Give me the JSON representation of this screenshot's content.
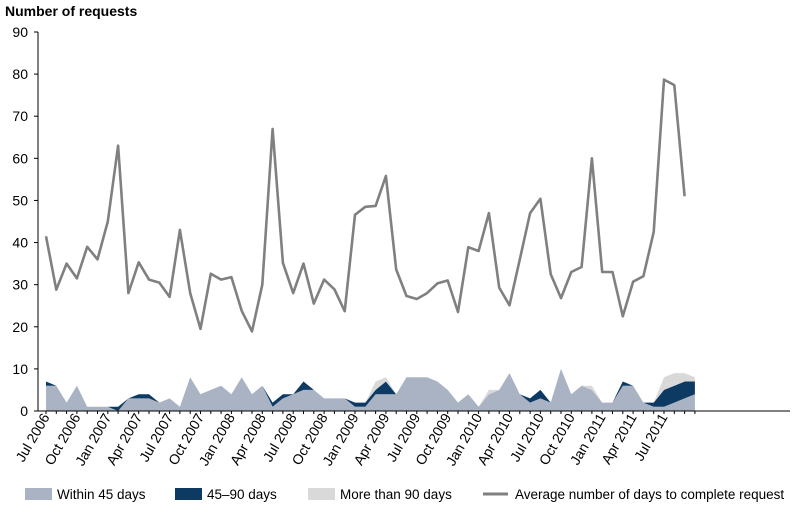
{
  "chart_data": {
    "type": "area",
    "title": "",
    "ylabel": "Number of requests",
    "xlabel": "",
    "ylim": [
      0,
      90
    ],
    "yticks": [
      0,
      10,
      20,
      30,
      40,
      50,
      60,
      70,
      80,
      90
    ],
    "grid": false,
    "legend_position": "bottom",
    "x_tick_labels": [
      "Jul 2006",
      "Oct 2006",
      "Jan 2007",
      "Apr 2007",
      "Jul 2007",
      "Oct 2007",
      "Jan 2008",
      "Apr 2008",
      "Jul 2008",
      "Oct 2008",
      "Jan 2009",
      "Apr 2009",
      "Jul 2009",
      "Oct 2009",
      "Jan 2010",
      "Apr 2010",
      "Jul 2010",
      "Oct 2010",
      "Jan 2011",
      "Apr 2011",
      "Jul 2011"
    ],
    "categories": [
      "Jul 2006",
      "Aug 2006",
      "Sep 2006",
      "Oct 2006",
      "Nov 2006",
      "Dec 2006",
      "Jan 2007",
      "Feb 2007",
      "Mar 2007",
      "Apr 2007",
      "May 2007",
      "Jun 2007",
      "Jul 2007",
      "Aug 2007",
      "Sep 2007",
      "Oct 2007",
      "Nov 2007",
      "Dec 2007",
      "Jan 2008",
      "Feb 2008",
      "Mar 2008",
      "Apr 2008",
      "May 2008",
      "Jun 2008",
      "Jul 2008",
      "Aug 2008",
      "Sep 2008",
      "Oct 2008",
      "Nov 2008",
      "Dec 2008",
      "Jan 2009",
      "Feb 2009",
      "Mar 2009",
      "Apr 2009",
      "May 2009",
      "Jun 2009",
      "Jul 2009",
      "Aug 2009",
      "Sep 2009",
      "Oct 2009",
      "Nov 2009",
      "Dec 2009",
      "Jan 2010",
      "Feb 2010",
      "Mar 2010",
      "Apr 2010",
      "May 2010",
      "Jun 2010",
      "Jul 2010",
      "Aug 2010",
      "Sep 2010",
      "Oct 2010",
      "Nov 2010",
      "Dec 2010",
      "Jan 2011",
      "Feb 2011",
      "Mar 2011",
      "Apr 2011",
      "May 2011",
      "Jun 2011",
      "Jul 2011",
      "Aug 2011",
      "Sep 2011",
      "Oct 2011"
    ],
    "series": [
      {
        "name": "Within 45 days",
        "kind": "stacked-area",
        "color": "#a9b3c4",
        "values": [
          6,
          6,
          2,
          6,
          1,
          1,
          1,
          0,
          3,
          3,
          3,
          2,
          3,
          1,
          8,
          4,
          5,
          6,
          4,
          8,
          4,
          6,
          1,
          3,
          4,
          5,
          5,
          3,
          3,
          3,
          1,
          1,
          4,
          4,
          4,
          8,
          8,
          8,
          7,
          5,
          2,
          4,
          1,
          4,
          5,
          9,
          4,
          2,
          3,
          2,
          10,
          4,
          6,
          5,
          2,
          2,
          6,
          6,
          2,
          1,
          1,
          2,
          3,
          4
        ]
      },
      {
        "name": "45–90 days",
        "kind": "stacked-area",
        "color": "#0d3a63",
        "values": [
          1,
          0,
          0,
          0,
          0,
          0,
          0,
          1,
          0,
          1,
          1,
          0,
          0,
          0,
          0,
          0,
          0,
          0,
          0,
          0,
          0,
          0,
          1,
          1,
          0,
          2,
          0,
          0,
          0,
          0,
          1,
          1,
          1,
          3,
          0,
          0,
          0,
          0,
          0,
          0,
          0,
          0,
          0,
          0,
          0,
          0,
          0,
          1,
          2,
          0,
          0,
          0,
          0,
          0,
          0,
          0,
          1,
          0,
          0,
          1,
          4,
          4,
          4,
          3
        ]
      },
      {
        "name": "More than 90 days",
        "kind": "stacked-area",
        "color": "#d9d9d9",
        "values": [
          0,
          0,
          0,
          0,
          0,
          0,
          0,
          0,
          0,
          0,
          0,
          0,
          0,
          0,
          0,
          0,
          0,
          0,
          0,
          0,
          0,
          0,
          0,
          0,
          0,
          0,
          0,
          0,
          0,
          0,
          0,
          0,
          2,
          1,
          0,
          0,
          0,
          0,
          0,
          0,
          0,
          0,
          0,
          1,
          0,
          0,
          0,
          0,
          0,
          0,
          0,
          0,
          0,
          1,
          0,
          0,
          0,
          0,
          0,
          0,
          3,
          3,
          2,
          1
        ]
      },
      {
        "name": "Average number of days to complete request",
        "kind": "line",
        "color": "#808080",
        "values": [
          41.5,
          28.8,
          35,
          31.5,
          39,
          36,
          45,
          63,
          28,
          35.3,
          31.2,
          30.5,
          27.1,
          43,
          28,
          19.5,
          32.6,
          31.2,
          31.8,
          23.8,
          18.9,
          30,
          67,
          35.2,
          28,
          35,
          25.5,
          31.2,
          28.9,
          23.7,
          46.6,
          48.5,
          48.7,
          55.8,
          33.6,
          27.3,
          26.6,
          28,
          30.3,
          31,
          23.5,
          38.9,
          38,
          47,
          29.3,
          25.1,
          36,
          47,
          50.4,
          32.5,
          26.8,
          33,
          34.2,
          60,
          33,
          33,
          22.5,
          30.7,
          32,
          42.5,
          78.7,
          77.4,
          51,
          null
        ]
      }
    ]
  }
}
